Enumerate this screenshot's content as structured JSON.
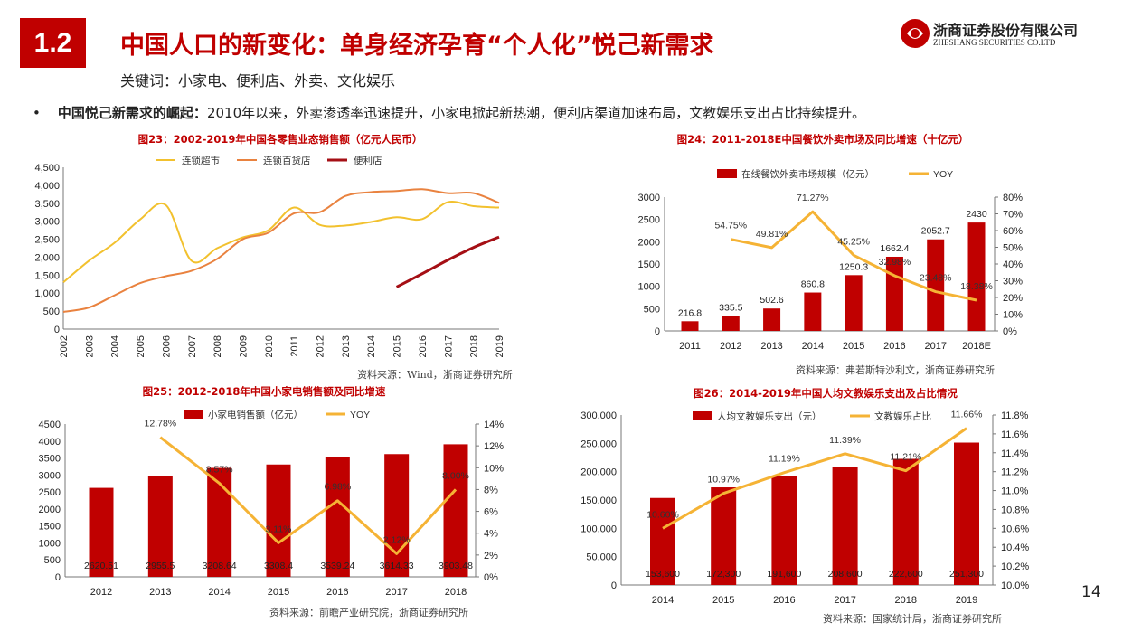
{
  "header": {
    "section": "1.2",
    "title": "中国人口的新变化：单身经济孕育“个人化”悦己新需求",
    "subtitle": "关键词：小家电、便利店、外卖、文化娱乐",
    "logo_name": "浙商证券股份有限公司",
    "logo_en": "ZHESHANG SECURITIES CO.LTD"
  },
  "bullet": {
    "lead": "中国悦己新需求的崛起：",
    "text": "2010年以来，外卖渗透率迅速提升，小家电掀起新热潮，便利店渠道加速布局，文教娱乐支出占比持续提升。"
  },
  "page_number": "14",
  "colors": {
    "accent": "#c00000",
    "bar": "#c00000",
    "yoy": "#f5b335"
  },
  "chart_data": [
    {
      "type": "line",
      "title": "图23：2002-2019年中国各零售业态销售额（亿元人民币）",
      "source": "资料来源：Wind，浙商证券研究所",
      "x": [
        "2002",
        "2003",
        "2004",
        "2005",
        "2006",
        "2007",
        "2008",
        "2009",
        "2010",
        "2011",
        "2012",
        "2013",
        "2014",
        "2015",
        "2016",
        "2017",
        "2018",
        "2019"
      ],
      "ylim": [
        0,
        4500
      ],
      "yticks": [
        "0",
        "500",
        "1,000",
        "1,500",
        "2,000",
        "2,500",
        "3,000",
        "3,500",
        "4,000",
        "4,500"
      ],
      "series": [
        {
          "name": "连锁超市",
          "color": "#f2c12e",
          "values": [
            1300,
            1900,
            2400,
            3050,
            3450,
            1900,
            2250,
            2550,
            2750,
            3380,
            2900,
            2880,
            2980,
            3110,
            3060,
            3530,
            3420,
            3380
          ]
        },
        {
          "name": "连锁百货店",
          "color": "#e9823f",
          "values": [
            480,
            600,
            940,
            1280,
            1470,
            1620,
            1950,
            2500,
            2680,
            3220,
            3250,
            3700,
            3810,
            3840,
            3890,
            3780,
            3780,
            3510
          ]
        },
        {
          "name": "便利店",
          "color": "#a50f15",
          "values": [
            null,
            null,
            null,
            null,
            null,
            null,
            null,
            null,
            null,
            null,
            null,
            null,
            null,
            1170,
            1540,
            1920,
            2270,
            2560
          ]
        }
      ]
    },
    {
      "type": "bar+line",
      "title": "图24：2011-2018E中国餐饮外卖市场及同比增速（十亿元）",
      "source": "资料来源：弗若斯特沙利文，浙商证券研究所",
      "categories": [
        "2011",
        "2012",
        "2013",
        "2014",
        "2015",
        "2016",
        "2017",
        "2018E"
      ],
      "bar_name": "在线餐饮外卖市场规模（亿元）",
      "line_name": "YOY",
      "bar_values": [
        216.8,
        335.5,
        502.6,
        860.8,
        1250.3,
        1662.4,
        2052.7,
        2430
      ],
      "bar_labels": [
        "216.8",
        "335.5",
        "502.6",
        "860.8",
        "1250.3",
        "1662.4",
        "2052.7",
        "2430"
      ],
      "line_values": [
        null,
        54.75,
        49.81,
        71.27,
        45.25,
        32.98,
        23.48,
        18.38
      ],
      "line_labels": [
        "",
        "54.75%",
        "49.81%",
        "71.27%",
        "45.25%",
        "32.98%",
        "23.48%",
        "18.38%"
      ],
      "ylim": [
        0,
        3000
      ],
      "yticks": [
        "0",
        "500",
        "1000",
        "1500",
        "2000",
        "2500",
        "3000"
      ],
      "y2lim": [
        0,
        80
      ],
      "y2ticks": [
        "0%",
        "10%",
        "20%",
        "30%",
        "40%",
        "50%",
        "60%",
        "70%",
        "80%"
      ]
    },
    {
      "type": "bar+line",
      "title": "图25：2012-2018年中国小家电销售额及同比增速",
      "source": "资料来源：前瞻产业研究院，浙商证券研究所",
      "categories": [
        "2012",
        "2013",
        "2014",
        "2015",
        "2016",
        "2017",
        "2018"
      ],
      "bar_name": "小家电销售额（亿元）",
      "line_name": "YOY",
      "bar_values": [
        2620.51,
        2955.5,
        3208.64,
        3308.4,
        3539.24,
        3614.33,
        3903.48
      ],
      "bar_labels": [
        "2620.51",
        "2955.5",
        "3208.64",
        "3308.4",
        "3539.24",
        "3614.33",
        "3903.48"
      ],
      "line_values": [
        null,
        12.78,
        8.57,
        3.11,
        6.98,
        2.12,
        8.0
      ],
      "line_labels": [
        "",
        "12.78%",
        "8.57%",
        "3.11%",
        "6.98%",
        "2.12%",
        "8.00%"
      ],
      "ylim": [
        0,
        4500
      ],
      "yticks": [
        "0",
        "500",
        "1000",
        "1500",
        "2000",
        "2500",
        "3000",
        "3500",
        "4000",
        "4500"
      ],
      "y2lim": [
        0,
        14
      ],
      "y2ticks": [
        "0%",
        "2%",
        "4%",
        "6%",
        "8%",
        "10%",
        "12%",
        "14%"
      ]
    },
    {
      "type": "bar+line",
      "title": "图26：2014-2019年中国人均文教娱乐支出及占比情况",
      "source": "资料来源：国家统计局，浙商证券研究所",
      "categories": [
        "2014",
        "2015",
        "2016",
        "2017",
        "2018",
        "2019"
      ],
      "bar_name": "人均文教娱乐支出（元）",
      "line_name": "文教娱乐占比",
      "bar_values": [
        153600,
        172300,
        191600,
        208600,
        222600,
        251300
      ],
      "bar_labels": [
        "153,600",
        "172,300",
        "191,600",
        "208,600",
        "222,600",
        "251,300"
      ],
      "line_values": [
        10.6,
        10.97,
        11.19,
        11.39,
        11.21,
        11.66
      ],
      "line_labels": [
        "10.60%",
        "10.97%",
        "11.19%",
        "11.39%",
        "11.21%",
        "11.66%"
      ],
      "ylim": [
        0,
        300000
      ],
      "yticks": [
        "0",
        "50,000",
        "100,000",
        "150,000",
        "200,000",
        "250,000",
        "300,000"
      ],
      "y2lim": [
        10.0,
        11.8
      ],
      "y2ticks": [
        "10.0%",
        "10.2%",
        "10.4%",
        "10.6%",
        "10.8%",
        "11.0%",
        "11.2%",
        "11.4%",
        "11.6%",
        "11.8%"
      ]
    }
  ]
}
